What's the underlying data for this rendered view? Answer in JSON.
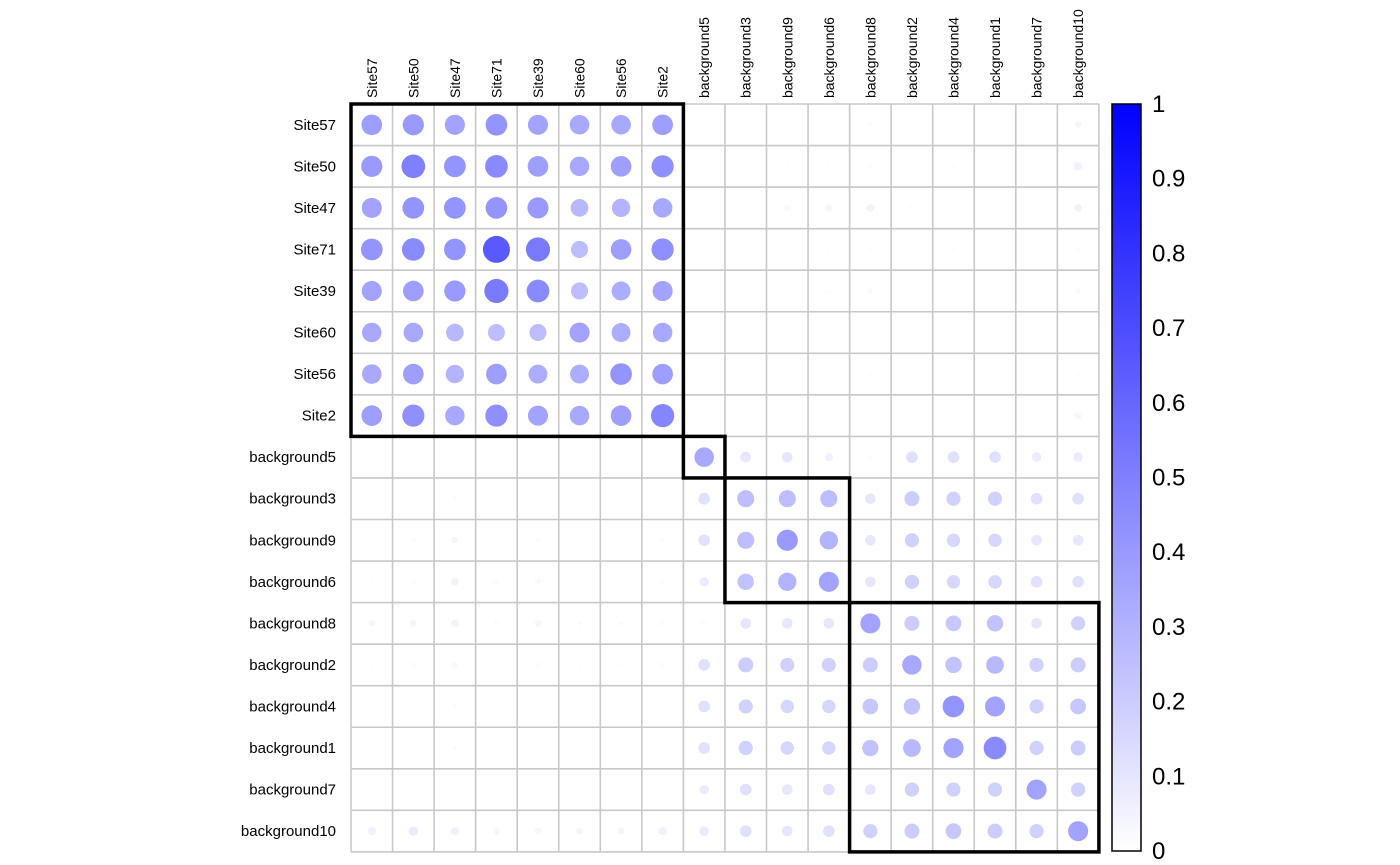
{
  "chart_data": {
    "type": "heatmap",
    "subtype": "correlation-circles",
    "row_labels": [
      "Site57",
      "Site50",
      "Site47",
      "Site71",
      "Site39",
      "Site60",
      "Site56",
      "Site2",
      "background5",
      "background3",
      "background9",
      "background6",
      "background8",
      "background2",
      "background4",
      "background1",
      "background7",
      "background10"
    ],
    "col_labels": [
      "Site57",
      "Site50",
      "Site47",
      "Site71",
      "Site39",
      "Site60",
      "Site56",
      "Site2",
      "background5",
      "background3",
      "background9",
      "background6",
      "background8",
      "background2",
      "background4",
      "background1",
      "background7",
      "background10"
    ],
    "values": [
      [
        0.38,
        0.4,
        0.36,
        0.42,
        0.36,
        0.34,
        0.34,
        0.38,
        0.0,
        0.0,
        0.01,
        0.01,
        0.02,
        0.01,
        0.01,
        0.01,
        0.0,
        0.04
      ],
      [
        0.4,
        0.5,
        0.42,
        0.46,
        0.38,
        0.34,
        0.38,
        0.44,
        0.0,
        0.0,
        0.01,
        0.01,
        0.02,
        0.01,
        0.01,
        0.0,
        0.0,
        0.06
      ],
      [
        0.36,
        0.42,
        0.42,
        0.42,
        0.4,
        0.28,
        0.3,
        0.34,
        0.0,
        0.01,
        0.03,
        0.04,
        0.05,
        0.02,
        0.01,
        0.01,
        0.0,
        0.05
      ],
      [
        0.42,
        0.46,
        0.42,
        0.65,
        0.52,
        0.26,
        0.38,
        0.44,
        0.0,
        0.0,
        0.0,
        0.01,
        0.01,
        0.01,
        0.01,
        0.0,
        0.0,
        0.02
      ],
      [
        0.36,
        0.38,
        0.4,
        0.52,
        0.46,
        0.26,
        0.32,
        0.36,
        0.0,
        0.0,
        0.01,
        0.02,
        0.02,
        0.01,
        0.0,
        0.0,
        0.0,
        0.02
      ],
      [
        0.34,
        0.34,
        0.28,
        0.26,
        0.26,
        0.36,
        0.32,
        0.34,
        0.0,
        0.0,
        0.0,
        0.0,
        0.01,
        0.0,
        0.0,
        0.0,
        0.0,
        0.01
      ],
      [
        0.34,
        0.38,
        0.3,
        0.38,
        0.32,
        0.32,
        0.42,
        0.38,
        0.0,
        0.0,
        0.0,
        0.0,
        0.01,
        0.0,
        0.0,
        0.0,
        0.0,
        0.01
      ],
      [
        0.38,
        0.44,
        0.34,
        0.44,
        0.36,
        0.34,
        0.38,
        0.48,
        0.0,
        0.0,
        0.01,
        0.01,
        0.01,
        0.01,
        0.0,
        0.0,
        0.0,
        0.04
      ],
      [
        0.0,
        0.0,
        0.0,
        0.0,
        0.0,
        0.0,
        0.0,
        0.0,
        0.34,
        0.1,
        0.1,
        0.06,
        0.02,
        0.12,
        0.12,
        0.12,
        0.08,
        0.08
      ],
      [
        0.01,
        0.01,
        0.02,
        0.01,
        0.01,
        0.0,
        0.0,
        0.01,
        0.12,
        0.26,
        0.26,
        0.26,
        0.1,
        0.2,
        0.18,
        0.18,
        0.12,
        0.12
      ],
      [
        0.01,
        0.02,
        0.04,
        0.01,
        0.02,
        0.01,
        0.01,
        0.02,
        0.12,
        0.26,
        0.4,
        0.3,
        0.1,
        0.18,
        0.16,
        0.16,
        0.1,
        0.1
      ],
      [
        0.01,
        0.02,
        0.05,
        0.02,
        0.03,
        0.01,
        0.01,
        0.02,
        0.08,
        0.24,
        0.3,
        0.36,
        0.1,
        0.18,
        0.16,
        0.16,
        0.12,
        0.12
      ],
      [
        0.04,
        0.04,
        0.05,
        0.02,
        0.04,
        0.02,
        0.02,
        0.02,
        0.02,
        0.1,
        0.1,
        0.1,
        0.36,
        0.2,
        0.22,
        0.24,
        0.1,
        0.18
      ],
      [
        0.01,
        0.02,
        0.03,
        0.01,
        0.02,
        0.01,
        0.01,
        0.02,
        0.12,
        0.2,
        0.18,
        0.18,
        0.2,
        0.34,
        0.24,
        0.28,
        0.18,
        0.2
      ],
      [
        0.01,
        0.01,
        0.02,
        0.01,
        0.01,
        0.01,
        0.0,
        0.01,
        0.12,
        0.18,
        0.16,
        0.16,
        0.22,
        0.24,
        0.42,
        0.36,
        0.18,
        0.22
      ],
      [
        0.01,
        0.01,
        0.02,
        0.0,
        0.01,
        0.0,
        0.0,
        0.01,
        0.12,
        0.18,
        0.16,
        0.16,
        0.24,
        0.28,
        0.36,
        0.46,
        0.18,
        0.2
      ],
      [
        0.0,
        0.0,
        0.01,
        0.0,
        0.0,
        0.0,
        0.0,
        0.0,
        0.08,
        0.12,
        0.1,
        0.12,
        0.1,
        0.18,
        0.18,
        0.18,
        0.36,
        0.18
      ],
      [
        0.06,
        0.08,
        0.06,
        0.04,
        0.04,
        0.04,
        0.04,
        0.06,
        0.08,
        0.12,
        0.1,
        0.12,
        0.18,
        0.2,
        0.22,
        0.2,
        0.18,
        0.36
      ]
    ],
    "clusters": [
      [
        0,
        7
      ],
      [
        8,
        8
      ],
      [
        9,
        11
      ],
      [
        12,
        17
      ]
    ],
    "legend": {
      "min": 0,
      "max": 1,
      "ticks": [
        "0",
        "0.1",
        "0.2",
        "0.3",
        "0.4",
        "0.5",
        "0.6",
        "0.7",
        "0.8",
        "0.9",
        "1"
      ],
      "low_color": "#ffffff",
      "high_color": "#0000ff"
    },
    "colors": {
      "grid": "#c8c8c8",
      "cluster_border": "#000000",
      "circle_high": "#0000ff"
    },
    "grid": true,
    "legend_position": "right"
  }
}
